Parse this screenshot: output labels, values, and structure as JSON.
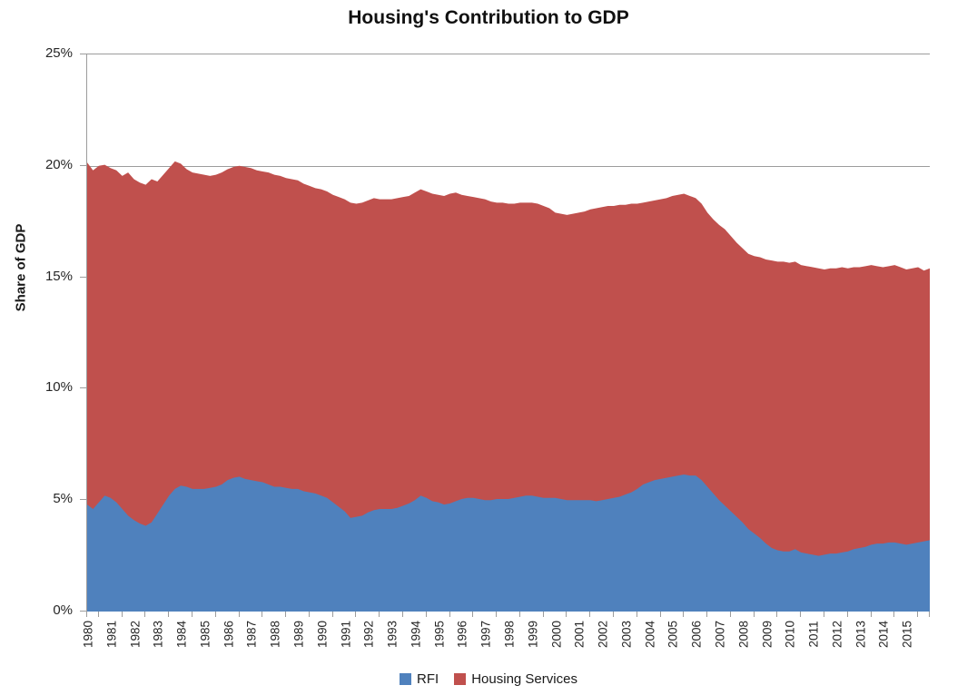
{
  "title": "Housing's Contribution to GDP",
  "y_axis_title": "Share of GDP",
  "legend": [
    {
      "label": "RFI",
      "color": "#4F81BD"
    },
    {
      "label": "Housing Services",
      "color": "#C0504D"
    }
  ],
  "colors": {
    "rfi_blue": "#4F81BD",
    "housing_services_red": "#C0504D",
    "gridline_gray": "#9c9c9c",
    "text_dark": "#262626"
  },
  "chart_data": {
    "type": "area",
    "stacked": true,
    "title": "Housing's Contribution to GDP",
    "xlabel": "",
    "ylabel": "Share of GDP",
    "ylim": [
      0,
      25
    ],
    "x_range": [
      1980,
      2016
    ],
    "points_per_year": 4,
    "grid": "horizontal",
    "legend_position": "bottom",
    "y_tick_values": [
      25,
      20,
      15,
      10,
      5,
      0
    ],
    "y_tick_labels": [
      "25%",
      "20%",
      "15%",
      "10%",
      "5%",
      "0%"
    ],
    "categories": [
      "1980",
      "1981",
      "1982",
      "1983",
      "1984",
      "1985",
      "1986",
      "1987",
      "1988",
      "1989",
      "1990",
      "1991",
      "1992",
      "1993",
      "1994",
      "1995",
      "1996",
      "1997",
      "1998",
      "1999",
      "2000",
      "2001",
      "2002",
      "2003",
      "2004",
      "2005",
      "2006",
      "2007",
      "2008",
      "2009",
      "2010",
      "2011",
      "2012",
      "2013",
      "2014",
      "2015"
    ],
    "series": [
      {
        "name": "RFI",
        "color": "#4F81BD",
        "values": [
          4.8,
          4.6,
          4.9,
          5.2,
          5.1,
          4.9,
          4.6,
          4.3,
          4.1,
          3.95,
          3.85,
          4.0,
          4.4,
          4.8,
          5.2,
          5.5,
          5.65,
          5.6,
          5.5,
          5.5,
          5.5,
          5.55,
          5.6,
          5.7,
          5.9,
          6.0,
          6.05,
          5.95,
          5.9,
          5.85,
          5.8,
          5.7,
          5.6,
          5.6,
          5.55,
          5.5,
          5.5,
          5.4,
          5.35,
          5.3,
          5.2,
          5.1,
          4.9,
          4.7,
          4.5,
          4.2,
          4.25,
          4.3,
          4.45,
          4.55,
          4.6,
          4.6,
          4.6,
          4.65,
          4.75,
          4.85,
          5.0,
          5.2,
          5.1,
          4.95,
          4.9,
          4.8,
          4.85,
          4.95,
          5.05,
          5.1,
          5.1,
          5.05,
          5.0,
          5.0,
          5.05,
          5.05,
          5.05,
          5.1,
          5.15,
          5.2,
          5.2,
          5.15,
          5.1,
          5.1,
          5.1,
          5.05,
          5.0,
          5.0,
          5.0,
          5.0,
          5.0,
          4.95,
          5.0,
          5.05,
          5.1,
          5.15,
          5.25,
          5.35,
          5.5,
          5.7,
          5.8,
          5.9,
          5.95,
          6.0,
          6.05,
          6.1,
          6.15,
          6.1,
          6.1,
          5.9,
          5.6,
          5.3,
          5.0,
          4.75,
          4.5,
          4.25,
          4.0,
          3.7,
          3.5,
          3.3,
          3.05,
          2.85,
          2.75,
          2.7,
          2.7,
          2.8,
          2.65,
          2.6,
          2.55,
          2.5,
          2.55,
          2.6,
          2.6,
          2.65,
          2.7,
          2.8,
          2.85,
          2.9,
          3.0,
          3.05,
          3.05,
          3.1,
          3.1,
          3.05,
          3.0,
          3.05,
          3.1,
          3.15,
          3.2
        ]
      },
      {
        "name": "Housing Services",
        "color": "#C0504D",
        "values": [
          15.35,
          15.2,
          15.1,
          14.85,
          14.8,
          14.9,
          14.95,
          15.4,
          15.3,
          15.3,
          15.3,
          15.4,
          14.9,
          14.8,
          14.7,
          14.7,
          14.45,
          14.25,
          14.2,
          14.15,
          14.1,
          14.0,
          14.0,
          14.0,
          13.95,
          13.95,
          13.95,
          14.0,
          14.0,
          13.95,
          13.95,
          14.0,
          14.0,
          13.95,
          13.9,
          13.9,
          13.85,
          13.8,
          13.75,
          13.7,
          13.75,
          13.75,
          13.8,
          13.9,
          14.0,
          14.15,
          14.05,
          14.05,
          14.0,
          14.0,
          13.9,
          13.9,
          13.9,
          13.9,
          13.85,
          13.8,
          13.8,
          13.75,
          13.75,
          13.8,
          13.8,
          13.85,
          13.9,
          13.85,
          13.65,
          13.55,
          13.5,
          13.5,
          13.5,
          13.4,
          13.3,
          13.3,
          13.25,
          13.2,
          13.2,
          13.15,
          13.15,
          13.15,
          13.1,
          13.0,
          12.8,
          12.8,
          12.8,
          12.85,
          12.9,
          12.95,
          13.05,
          13.15,
          13.15,
          13.15,
          13.1,
          13.1,
          13.0,
          12.95,
          12.8,
          12.65,
          12.6,
          12.55,
          12.55,
          12.55,
          12.6,
          12.6,
          12.6,
          12.55,
          12.45,
          12.4,
          12.3,
          12.3,
          12.35,
          12.4,
          12.35,
          12.3,
          12.3,
          12.35,
          12.45,
          12.6,
          12.75,
          12.9,
          12.95,
          13.0,
          12.95,
          12.9,
          12.9,
          12.9,
          12.9,
          12.9,
          12.8,
          12.8,
          12.8,
          12.8,
          12.7,
          12.65,
          12.6,
          12.6,
          12.55,
          12.45,
          12.4,
          12.4,
          12.45,
          12.4,
          12.35,
          12.35,
          12.35,
          12.15,
          12.2
        ]
      }
    ]
  }
}
